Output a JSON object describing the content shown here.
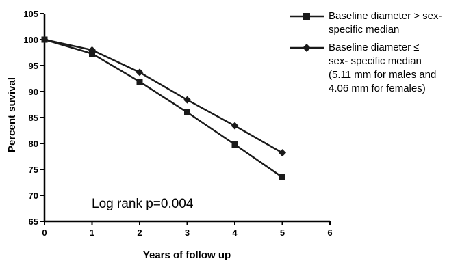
{
  "chart_data": {
    "type": "line",
    "x": [
      0,
      1,
      2,
      3,
      4,
      5
    ],
    "series": [
      {
        "name": "Baseline diameter > sex-\nspecific median",
        "marker": "square",
        "values": [
          100,
          97.3,
          91.9,
          86.0,
          79.8,
          73.5
        ]
      },
      {
        "name": "Baseline diameter ≤\nsex- specific median\n(5.11  mm for males and\n4.06  mm for females)",
        "marker": "diamond",
        "values": [
          100,
          98.0,
          93.7,
          88.4,
          83.4,
          78.2
        ]
      }
    ],
    "xlabel": "Years of follow up",
    "ylabel": "Percent suvival",
    "xlim": [
      0,
      6
    ],
    "ylim": [
      65,
      105
    ],
    "xticks": [
      "0",
      "1",
      "2",
      "3",
      "4",
      "5",
      "6"
    ],
    "yticks": [
      "65",
      "70",
      "75",
      "80",
      "85",
      "90",
      "95",
      "100",
      "105"
    ],
    "annotation": "Log rank p=0.004",
    "grid": false,
    "legend_position": "right",
    "line_color": "#1a1a1a"
  }
}
